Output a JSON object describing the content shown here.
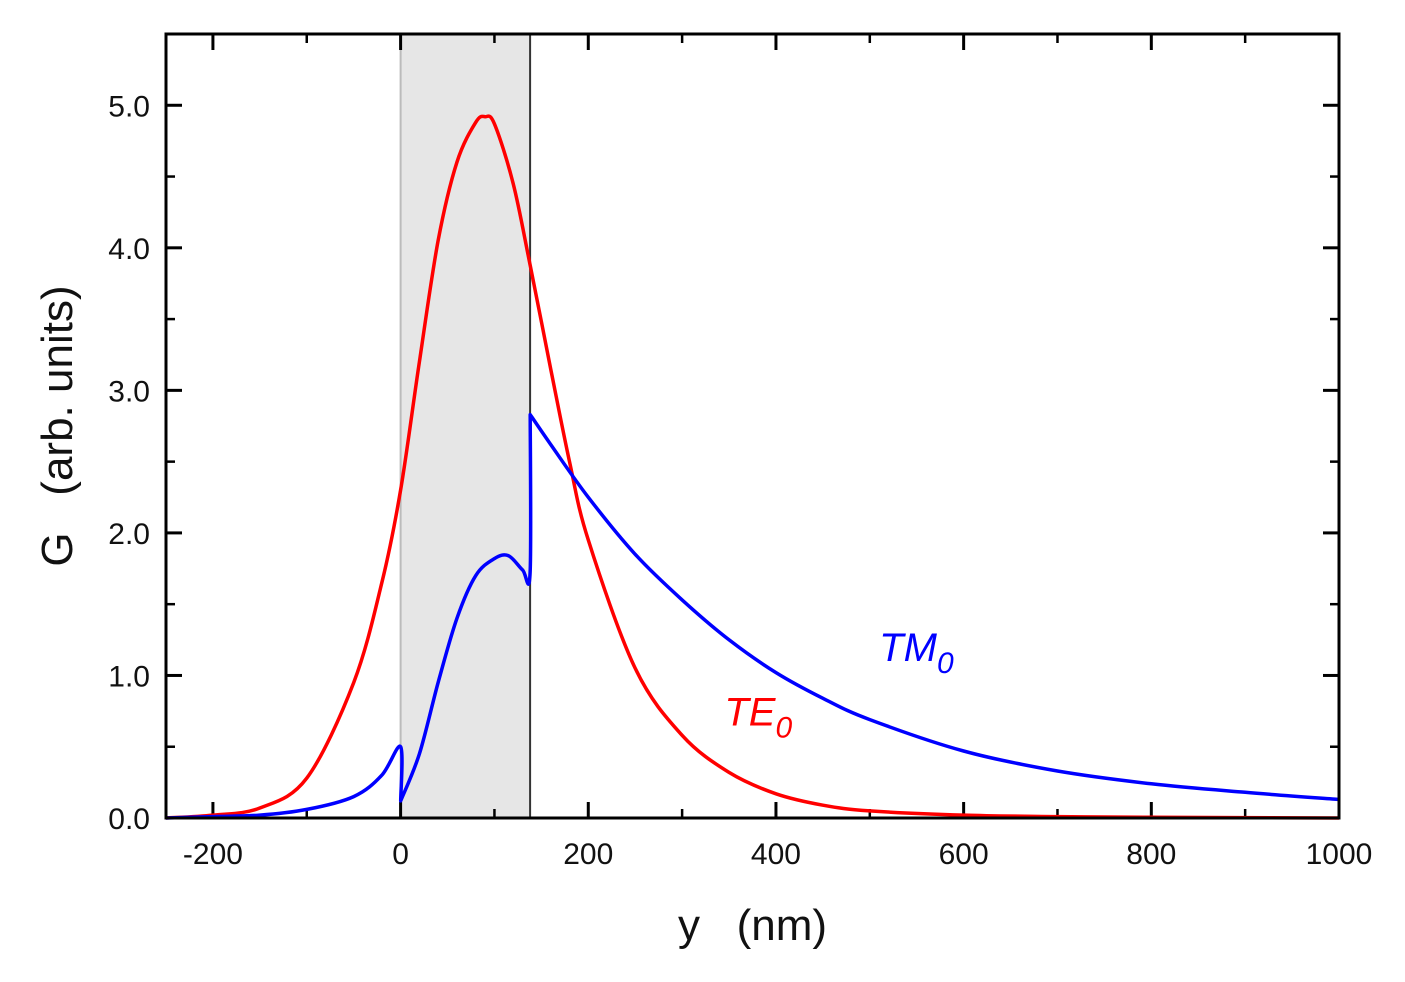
{
  "chart_data": {
    "type": "line",
    "title": "",
    "xlabel": "y   (nm)",
    "ylabel": "G   (arb. units)",
    "xlim": [
      -250,
      1000
    ],
    "ylim": [
      0,
      5.5
    ],
    "xticks": [
      -200,
      0,
      200,
      400,
      600,
      800,
      1000
    ],
    "xtick_labels": [
      "-200",
      "0",
      "200",
      "400",
      "600",
      "800",
      "1000"
    ],
    "yticks": [
      0,
      1,
      2,
      3,
      4,
      5
    ],
    "ytick_labels": [
      "0.0",
      "1.0",
      "2.0",
      "3.0",
      "4.0",
      "5.0"
    ],
    "shaded_region": {
      "x_start": 0,
      "x_end": 138,
      "color": "#e6e6e6"
    },
    "grid": false,
    "series": [
      {
        "name": "TE",
        "subscript": "0",
        "color": "#ff0000",
        "x": [
          -250,
          -200,
          -150,
          -100,
          -50,
          -20,
          0,
          20,
          40,
          60,
          80,
          90,
          100,
          120,
          138,
          160,
          180,
          200,
          250,
          300,
          350,
          400,
          450,
          500,
          600,
          700,
          800,
          1000
        ],
        "y": [
          0.0,
          0.02,
          0.07,
          0.28,
          0.95,
          1.65,
          2.3,
          3.2,
          4.05,
          4.6,
          4.88,
          4.92,
          4.87,
          4.45,
          3.88,
          3.15,
          2.5,
          1.95,
          1.05,
          0.58,
          0.32,
          0.17,
          0.09,
          0.05,
          0.02,
          0.01,
          0.005,
          0.0
        ]
      },
      {
        "name": "TM",
        "subscript": "0",
        "color": "#0000ff",
        "x": [
          -250,
          -200,
          -150,
          -100,
          -50,
          -20,
          0,
          0.1,
          20,
          40,
          60,
          80,
          100,
          115,
          130,
          138,
          138.1,
          160,
          200,
          250,
          300,
          350,
          400,
          450,
          500,
          600,
          700,
          800,
          900,
          1000
        ],
        "y": [
          0.0,
          0.01,
          0.02,
          0.06,
          0.15,
          0.3,
          0.5,
          0.12,
          0.45,
          0.95,
          1.4,
          1.7,
          1.82,
          1.84,
          1.74,
          1.72,
          2.83,
          2.62,
          2.25,
          1.85,
          1.53,
          1.25,
          1.02,
          0.84,
          0.69,
          0.47,
          0.33,
          0.24,
          0.18,
          0.13
        ]
      }
    ],
    "annotations": [
      {
        "series": "TE",
        "text": "TE",
        "subscript": "0",
        "x": 345,
        "y": 0.65
      },
      {
        "series": "TM",
        "text": "TM",
        "subscript": "0",
        "x": 510,
        "y": 1.1
      }
    ]
  }
}
